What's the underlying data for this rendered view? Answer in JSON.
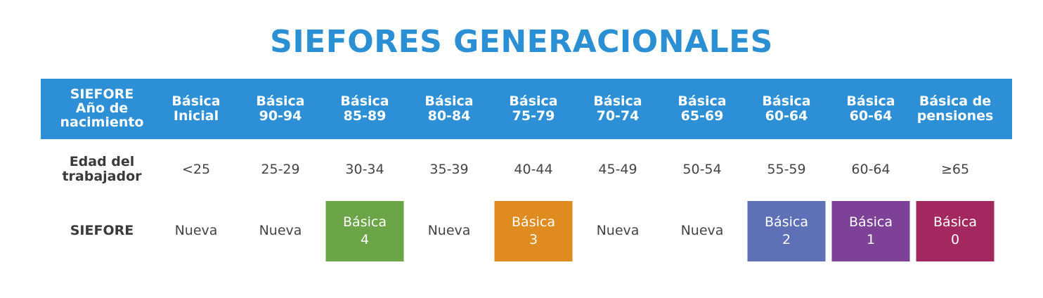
{
  "title": "SIEFORES GENERACIONALES",
  "table": {
    "header": [
      "SIEFORE\nAño de\nnacimiento",
      "Básica\nInicial",
      "Básica\n90-94",
      "Básica\n85-89",
      "Básica\n80-84",
      "Básica\n75-79",
      "Básica\n70-74",
      "Básica\n65-69",
      "Básica\n60-64",
      "Básica\n60-64",
      "Básica de\npensiones"
    ],
    "rows": [
      {
        "label": "Edad del\ntrabajador",
        "cells": [
          {
            "text": "<25"
          },
          {
            "text": "25-29"
          },
          {
            "text": "30-34"
          },
          {
            "text": "35-39"
          },
          {
            "text": "40-44"
          },
          {
            "text": "45-49"
          },
          {
            "text": "50-54"
          },
          {
            "text": "55-59"
          },
          {
            "text": "60-64"
          },
          {
            "text": "≥65"
          }
        ]
      },
      {
        "label": "SIEFORE",
        "cells": [
          {
            "text": "Nueva"
          },
          {
            "text": "Nueva"
          },
          {
            "text": "Básica\n4",
            "color": "#6ba547"
          },
          {
            "text": "Nueva"
          },
          {
            "text": "Básica\n3",
            "color": "#e08b1f"
          },
          {
            "text": "Nueva"
          },
          {
            "text": "Nueva"
          },
          {
            "text": "Básica\n2",
            "color": "#5f71b6"
          },
          {
            "text": "Básica\n1",
            "color": "#7e4198"
          },
          {
            "text": "Básica\n0",
            "color": "#a2285f"
          }
        ]
      }
    ]
  }
}
